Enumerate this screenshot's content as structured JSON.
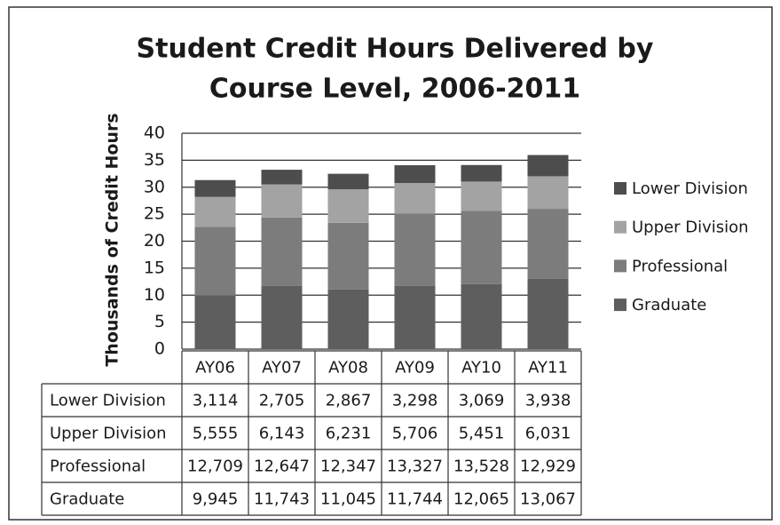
{
  "chart_data": {
    "type": "stacked_bar",
    "title": [
      "Student Credit Hours Delivered by",
      "Course Level, 2006-2011"
    ],
    "y_label": "Thousands  of Credit Hours",
    "categories": [
      "AY06",
      "AY07",
      "AY08",
      "AY09",
      "AY10",
      "AY11"
    ],
    "series": [
      {
        "name": "Lower Division",
        "color": "#4d4d4d",
        "values": [
          3.114,
          2.705,
          2.867,
          3.298,
          3.069,
          3.938
        ],
        "value_labels": [
          "3,114",
          "2,705",
          "2,867",
          "3,298",
          "3,069",
          "3,938"
        ]
      },
      {
        "name": "Upper Division",
        "color": "#a3a3a3",
        "values": [
          5.555,
          6.143,
          6.231,
          5.706,
          5.451,
          6.031
        ],
        "value_labels": [
          "5,555",
          "6,143",
          "6,231",
          "5,706",
          "5,451",
          "6,031"
        ]
      },
      {
        "name": "Professional",
        "color": "#7c7c7c",
        "values": [
          12.709,
          12.647,
          12.347,
          13.327,
          13.528,
          12.929
        ],
        "value_labels": [
          "12,709",
          "12,647",
          "12,347",
          "13,327",
          "13,528",
          "12,929"
        ]
      },
      {
        "name": "Graduate",
        "color": "#5e5e5e",
        "values": [
          9.945,
          11.743,
          11.045,
          11.744,
          12.065,
          13.067
        ],
        "value_labels": [
          "9,945",
          "11,743",
          "11,045",
          "11,744",
          "12,065",
          "13,067"
        ]
      }
    ],
    "ylim": [
      0,
      40
    ],
    "yticks": [
      0,
      5,
      10,
      15,
      20,
      25,
      30,
      35,
      40
    ],
    "grid": true,
    "legend": "right"
  }
}
